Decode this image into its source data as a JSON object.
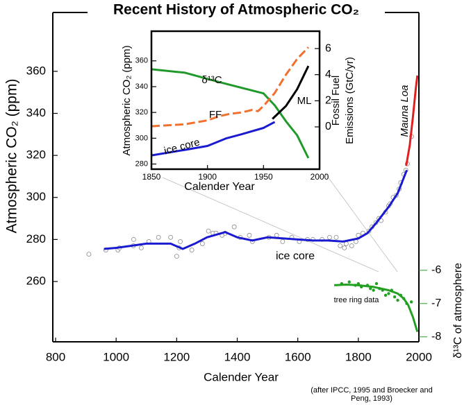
{
  "chart_data": [
    {
      "type": "line",
      "title": "Recent History of Atmospheric CO₂",
      "x_label": "Calender Year",
      "y_label": "Atmospheric CO₂ (ppm)",
      "y2_label": "δ¹³C of atmosphere",
      "note": [
        "(after IPCC, 1995 and Broecker and",
        "Peng, 1993)"
      ],
      "xlim": [
        790.8,
        2000
      ],
      "xticks": [
        800,
        1000,
        1200,
        1400,
        1600,
        1800,
        2000
      ],
      "ylim": [
        231.3,
        388
      ],
      "yticks": [
        260,
        280,
        300,
        320,
        340,
        360
      ],
      "y2lim": [
        -8.15,
        1.75
      ],
      "y2ticks": [
        -6,
        -7,
        -8
      ],
      "series": [
        {
          "type": "scatter",
          "color": "#888888",
          "x": [
            910,
            966,
            1006,
            1011,
            1057,
            1058,
            1083,
            1108,
            1140,
            1180,
            1200,
            1208,
            1212,
            1250,
            1285,
            1305,
            1320,
            1330,
            1350,
            1360,
            1390,
            1410,
            1440,
            1450,
            1505,
            1530,
            1550,
            1580,
            1605,
            1632,
            1650,
            1680,
            1705,
            1727,
            1740,
            1754,
            1760,
            1778,
            1792,
            1800,
            1815,
            1835,
            1845,
            1858,
            1868,
            1875,
            1890,
            1900,
            1905,
            1915,
            1925,
            1935,
            1940,
            1950,
            1957,
            1962,
            1976
          ],
          "values": [
            273,
            275,
            275,
            276,
            277,
            280,
            276,
            279,
            281,
            281,
            272,
            276,
            279,
            275,
            278,
            284,
            283,
            283,
            282,
            283,
            286,
            281,
            282,
            279,
            281,
            282,
            279,
            281,
            279,
            280,
            280,
            280,
            281,
            281,
            277,
            276,
            278,
            277,
            279,
            282,
            283,
            284,
            286,
            288,
            290,
            289,
            293,
            296,
            297,
            300,
            301,
            304,
            307,
            311,
            313,
            316,
            329
          ]
        },
        {
          "type": "line",
          "name": "ice core",
          "color": "#1a1ad0",
          "x": [
            960,
            1000,
            1050,
            1100,
            1180,
            1220,
            1260,
            1300,
            1360,
            1400,
            1450,
            1500,
            1600,
            1650,
            1700,
            1750,
            1800,
            1830,
            1860,
            1900,
            1930,
            1960
          ],
          "values": [
            275.5,
            276,
            277,
            278,
            278,
            275.5,
            278,
            281,
            283.5,
            281,
            279.5,
            281,
            280,
            279.5,
            279.5,
            279,
            280.5,
            283,
            288,
            295.5,
            302,
            313
          ]
        },
        {
          "type": "line",
          "name": "Mauna Loa",
          "color": "#e02020",
          "x": [
            1958,
            1970,
            1980,
            1990,
            1995
          ],
          "values": [
            315,
            325,
            338,
            352,
            358
          ]
        },
        {
          "type": "scatter",
          "axis": "y2",
          "color": "#22a022",
          "x": [
            1745,
            1770,
            1790,
            1800,
            1810,
            1830,
            1840,
            1850,
            1860,
            1870,
            1880,
            1890,
            1900,
            1910,
            1920,
            1930,
            1940,
            1950,
            1960,
            1975
          ],
          "values": [
            -6.4,
            -6.35,
            -6.45,
            -6.4,
            -6.5,
            -6.45,
            -6.55,
            -6.6,
            -6.4,
            -6.55,
            -6.6,
            -6.75,
            -6.7,
            -6.6,
            -6.8,
            -6.9,
            -6.75,
            -6.85,
            -7.0,
            -6.95
          ]
        },
        {
          "type": "line",
          "name": "tree ring data",
          "axis": "y2",
          "color": "#22a022",
          "x": [
            1720,
            1760,
            1800,
            1850,
            1900,
            1930,
            1950,
            1965,
            1980,
            1995
          ],
          "values": [
            -6.45,
            -6.43,
            -6.45,
            -6.5,
            -6.6,
            -6.7,
            -6.85,
            -7.05,
            -7.4,
            -7.85
          ]
        }
      ]
    },
    {
      "type": "line",
      "x_label": "Calender Year",
      "y_label": "Atmospheric CO₂ (ppm)",
      "y2_label": [
        "Fossil Fuel",
        "Emissions (GtC/yr)"
      ],
      "xlim": [
        1850,
        2000
      ],
      "xticks": [
        1850,
        1900,
        1950,
        2000
      ],
      "ylim": [
        276,
        383
      ],
      "yticks": [
        280,
        300,
        320,
        340,
        360
      ],
      "y2lim": [
        -3.24,
        7.33
      ],
      "y2ticks": [
        0,
        2,
        4,
        6
      ],
      "y3lim": [
        -7.975,
        -5.8
      ],
      "series": [
        {
          "type": "line",
          "name": "δ¹³C",
          "axis": "y3",
          "color": "#1f9a2a",
          "x": [
            1850,
            1880,
            1910,
            1950,
            1960,
            1970,
            1980,
            1990
          ],
          "values": [
            -6.4,
            -6.455,
            -6.6,
            -6.78,
            -6.97,
            -7.22,
            -7.44,
            -7.8
          ]
        },
        {
          "type": "line",
          "name": "FF",
          "axis": "y2",
          "color": "#f07030",
          "dashed": true,
          "x": [
            1850,
            1880,
            1900,
            1910,
            1920,
            1930,
            1940,
            1945,
            1950,
            1960,
            1970,
            1980,
            1990
          ],
          "values": [
            0.05,
            0.2,
            0.5,
            0.8,
            1.0,
            1.1,
            1.3,
            1.2,
            1.6,
            2.6,
            4.0,
            5.2,
            6.1
          ]
        },
        {
          "type": "line",
          "name": "ice core",
          "color": "#1a1ad0",
          "x": [
            1850,
            1880,
            1900,
            1917,
            1930,
            1950,
            1960
          ],
          "values": [
            286.7,
            291,
            294,
            300,
            303,
            308,
            312.6
          ]
        },
        {
          "type": "line",
          "name": "ML",
          "color": "#000000",
          "x": [
            1958,
            1970,
            1980,
            1990
          ],
          "values": [
            315,
            325,
            338,
            356
          ]
        }
      ]
    }
  ]
}
